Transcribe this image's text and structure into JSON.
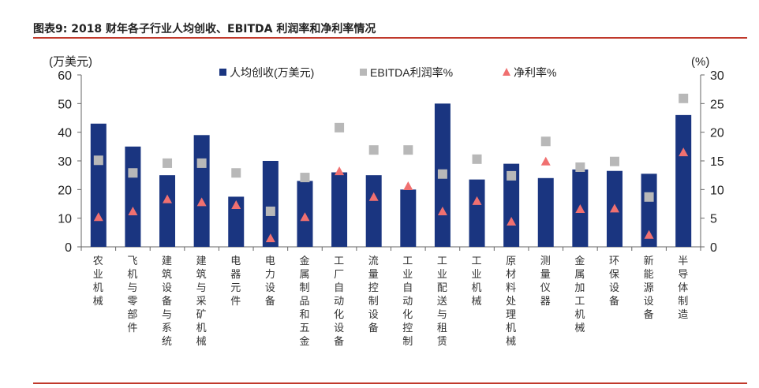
{
  "title": "图表9:  2018 财年各子行业人均创收、EBITDA 利润率和净利率情况",
  "chart_data": {
    "type": "bar",
    "title": "2018 财年各子行业人均创收、EBITDA 利润率和净利率情况",
    "ylabel_left": "(万美元)",
    "ylabel_right": "(%)",
    "ylim_left": [
      0,
      60
    ],
    "ylim_right": [
      0,
      30
    ],
    "yticks_left": [
      "0",
      "10",
      "20",
      "30",
      "40",
      "50",
      "60"
    ],
    "yticks_right": [
      "0",
      "5",
      "10",
      "15",
      "20",
      "25",
      "30"
    ],
    "legend_position": "top",
    "categories": [
      "农业机械",
      "飞机与零部件",
      "建筑设备与系统",
      "建筑与采矿机械",
      "电器元件",
      "电力设备",
      "金属制品和五金",
      "工厂自动化设备",
      "流量控制设备",
      "工业自动化控制",
      "工业配送与租赁",
      "工业机械",
      "原材料处理机械",
      "测量仪器",
      "金属加工机械",
      "环保设备",
      "新能源设备",
      "半导体制造"
    ],
    "series": [
      {
        "name": "人均创收(万美元)",
        "type": "bar",
        "axis": "left",
        "color": "#1a3580",
        "values": [
          43,
          35,
          25,
          39,
          17.5,
          30,
          23,
          26,
          25,
          20,
          50,
          23.5,
          29,
          24,
          27,
          26.5,
          25.5,
          46
        ]
      },
      {
        "name": "EBITDA利润率%",
        "type": "square",
        "axis": "right",
        "color": "#b8b8b8",
        "values": [
          15.1,
          12.9,
          14.6,
          14.6,
          12.9,
          6.2,
          12.1,
          20.8,
          16.9,
          16.9,
          12.7,
          15.3,
          12.4,
          18.4,
          13.9,
          14.9,
          8.7,
          25.9
        ]
      },
      {
        "name": "净利率%",
        "type": "triangle",
        "axis": "right",
        "color": "#f07070",
        "values": [
          5.2,
          6.2,
          8.3,
          7.8,
          7.3,
          1.5,
          5.2,
          13.2,
          8.7,
          10.6,
          6.2,
          8.0,
          4.4,
          14.9,
          6.6,
          6.7,
          2.1,
          16.5
        ]
      }
    ]
  }
}
